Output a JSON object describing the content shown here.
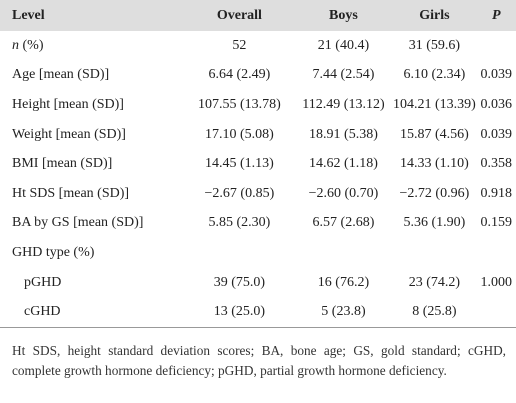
{
  "table": {
    "header": [
      "Level",
      "Overall",
      "Boys",
      "Girls",
      "P"
    ],
    "rows": [
      [
        [
          "n",
          " (%)"
        ],
        "52",
        "21 (40.4)",
        "31 (59.6)",
        ""
      ],
      [
        "Age [mean (SD)]",
        "6.64 (2.49)",
        "7.44 (2.54)",
        "6.10 (2.34)",
        "0.039"
      ],
      [
        "Height [mean (SD)]",
        "107.55 (13.78)",
        "112.49 (13.12)",
        "104.21 (13.39)",
        "0.036"
      ],
      [
        "Weight [mean (SD)]",
        "17.10 (5.08)",
        "18.91 (5.38)",
        "15.87 (4.56)",
        "0.039"
      ],
      [
        "BMI [mean (SD)]",
        "14.45 (1.13)",
        "14.62 (1.18)",
        "14.33 (1.10)",
        "0.358"
      ],
      [
        "Ht SDS [mean (SD)]",
        "−2.67 (0.85)",
        "−2.60 (0.70)",
        "−2.72 (0.96)",
        "0.918"
      ],
      [
        "BA by GS [mean (SD)]",
        "5.85 (2.30)",
        "6.57 (2.68)",
        "5.36 (1.90)",
        "0.159"
      ],
      [
        "GHD type (%)",
        "",
        "",
        "",
        ""
      ],
      [
        "pGHD",
        "39 (75.0)",
        "16 (76.2)",
        "23 (74.2)",
        "1.000"
      ],
      [
        "cGHD",
        "13 (25.0)",
        "5 (23.8)",
        "8 (25.8)",
        ""
      ]
    ]
  },
  "footnote": "Ht SDS, height standard deviation scores; BA, bone age; GS, gold standard; cGHD, complete growth hormone deficiency; pGHD, partial growth hormone deficiency."
}
